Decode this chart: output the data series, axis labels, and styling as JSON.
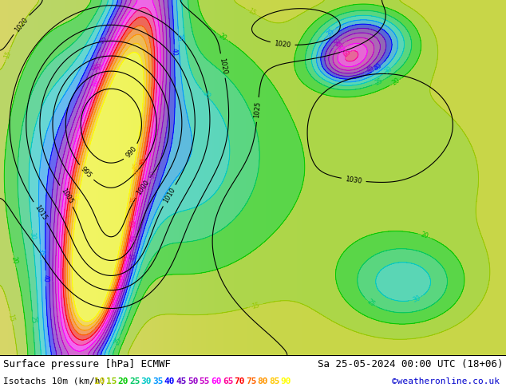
{
  "title_left": "Surface pressure [hPa] ECMWF",
  "title_right": "Sa 25-05-2024 00:00 UTC (18+06)",
  "legend_label": "Isotachs 10m (km/h)",
  "copyright": "©weatheronline.co.uk",
  "isotach_values": [
    10,
    15,
    20,
    25,
    30,
    35,
    40,
    45,
    50,
    55,
    60,
    65,
    70,
    75,
    80,
    85,
    90
  ],
  "isotach_colors": [
    "#c8c800",
    "#96c800",
    "#00c800",
    "#00c864",
    "#00c8c8",
    "#0096ff",
    "#0000ff",
    "#6400c8",
    "#9600c8",
    "#c800c8",
    "#ff00ff",
    "#ff0096",
    "#ff0000",
    "#ff6400",
    "#ff9600",
    "#ffc800",
    "#ffff00"
  ],
  "bg_color": "#f0f0e8",
  "land_color": "#c8e8a0",
  "sea_color": "#e8e8e8",
  "font_size_title": 9,
  "font_size_legend": 8,
  "fig_width": 6.34,
  "fig_height": 4.9,
  "dpi": 100
}
